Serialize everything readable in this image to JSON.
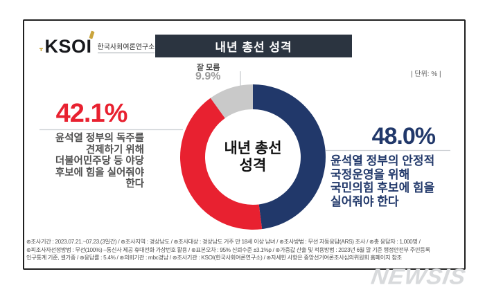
{
  "header": {
    "logo_text": "KSOI",
    "logo_subtext": "한국사회여론연구소",
    "title": "내년 총선 성격",
    "unit_label": "| 단위: % |"
  },
  "chart_data": {
    "type": "pie",
    "donut": true,
    "title": "내년 총선 성격",
    "center_label": "내년 총선\n성격",
    "unit": "%",
    "start_angle": "top",
    "direction": "clockwise",
    "segments": [
      {
        "label": "윤석열 정부의 안정적 국정운영을 위해 국민의힘 후보에 힘을 실어줘야 한다",
        "value": 48.0,
        "color": "#21386a"
      },
      {
        "label": "윤석열 정부의 독주를 견제하기 위해 더불어민주당 등 야당 후보에 힘을 실어줘야 한다",
        "value": 42.1,
        "color": "#e82130"
      },
      {
        "label": "잘 모름",
        "value": 9.9,
        "color": "#c9c9c9"
      }
    ]
  },
  "callouts": {
    "left": {
      "value": "42.1%",
      "description": "윤석열 정부의 독주를\n견제하기 위해\n더불어민주당 등 야당\n후보에 힘을 실어줘야\n한다"
    },
    "right": {
      "value": "48.0%",
      "description": "윤석열 정부의 안정적\n국정운영을 위해\n국민의힘 후보에 힘을\n실어줘야 한다"
    },
    "unknown": {
      "label": "잘 모름",
      "value": "9.9%"
    }
  },
  "footer": {
    "lines": [
      "⊛조사기간 : 2023.07.21.~07.23.(3일간) / ⊛조사지역 : 경상남도 / ⊛조사대상 : 경상남도 거주 만 18세 이상 남녀 / ⊛조사방법 : 무선 자동응답(ARS) 조사 / ⊛총 응답자 : 1,000명 /",
      "⊛피조사자선정방법 : 무선(100%) –통신사 제공 휴대전화 가상번호 활용 / ⊛표본오차 : 95% 신뢰수준 ±3.1%p / ⊛가중값 산출 및 적용방법 : 2023년 6월 말 기준 행정안전부 주민등록",
      "인구통계 기준, 셀가중 / ⊛응답률 : 5.4% / ⊛의뢰기관 : mbc경남 / ⊛조사기관 : KSOI(한국사회여론연구소) / ⊛자세한 사항은 중앙선거여론조사심의위원회 홈페이지 참조"
    ]
  },
  "watermark": "NEWSIS"
}
